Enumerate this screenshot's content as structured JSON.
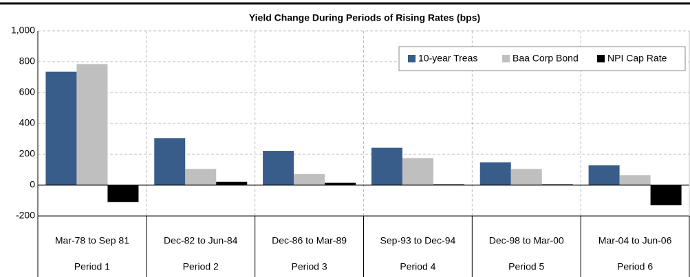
{
  "chart_data": {
    "type": "bar",
    "title": "Yield Change During Periods of Rising Rates (bps)",
    "categories": [
      "Mar-78 to Sep 81",
      "Dec-82 to Jun-84",
      "Dec-86 to Mar-89",
      "Sep-93 to Dec-94",
      "Dec-98 to Mar-00",
      "Mar-04 to Jun-06"
    ],
    "periods": [
      "Period 1",
      "Period 2",
      "Period 3",
      "Period 4",
      "Period 5",
      "Period 6"
    ],
    "series": [
      {
        "name": "10-year Treas",
        "color": "#385d8a",
        "values": [
          735,
          305,
          222,
          242,
          148,
          128
        ]
      },
      {
        "name": "Baa Corp Bond",
        "color": "#bfbfbf",
        "values": [
          785,
          105,
          72,
          175,
          105,
          65
        ]
      },
      {
        "name": "NPI Cap Rate",
        "color": "#000000",
        "values": [
          -110,
          22,
          15,
          5,
          5,
          -130
        ]
      }
    ],
    "ylim": [
      -200,
      1000
    ],
    "yticks": [
      -200,
      0,
      200,
      400,
      600,
      800,
      {
        "value": 1000,
        "label": "1,000"
      }
    ],
    "grid": true,
    "legend": "top-right"
  }
}
